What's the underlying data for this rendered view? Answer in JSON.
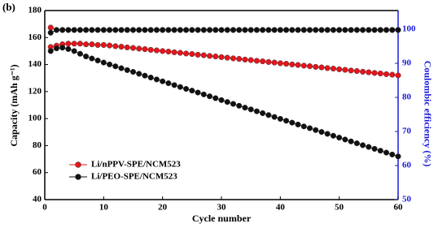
{
  "chart_data": {
    "type": "line",
    "panel_label": "(b)",
    "xlabel": "Cycle number",
    "ylabel": "Capacity (mAh g⁻¹)",
    "y2label": "Coulombic efficiency (%)",
    "x": [
      1,
      2,
      3,
      4,
      5,
      6,
      7,
      8,
      9,
      10,
      11,
      12,
      13,
      14,
      15,
      16,
      17,
      18,
      19,
      20,
      21,
      22,
      23,
      24,
      25,
      26,
      27,
      28,
      29,
      30,
      31,
      32,
      33,
      34,
      35,
      36,
      37,
      38,
      39,
      40,
      41,
      42,
      43,
      44,
      45,
      46,
      47,
      48,
      49,
      50,
      51,
      52,
      53,
      54,
      55,
      56,
      57,
      58,
      59,
      60
    ],
    "series": [
      {
        "name": "Li/nPPV-SPE/NCM523",
        "color": "#e8141b",
        "values": [
          153,
          154,
          155,
          155.5,
          155.5,
          155.5,
          155,
          155,
          154.5,
          154.5,
          154.1,
          153.6,
          153.2,
          152.7,
          152.3,
          151.8,
          151.4,
          150.9,
          150.5,
          150.0,
          149.6,
          149.1,
          148.7,
          148.2,
          147.8,
          147.3,
          146.9,
          146.4,
          146.0,
          145.5,
          145.1,
          144.6,
          144.2,
          143.7,
          143.3,
          142.8,
          142.4,
          141.9,
          141.5,
          141.0,
          140.6,
          140.1,
          139.7,
          139.2,
          138.8,
          138.3,
          137.9,
          137.4,
          137.0,
          136.5,
          136.1,
          135.6,
          135.2,
          134.7,
          134.3,
          133.8,
          133.4,
          132.9,
          132.5,
          132.0
        ],
        "efficiency": [
          100.5,
          99.8,
          99.8,
          99.8,
          99.8,
          99.8,
          99.8,
          99.8,
          99.8,
          99.8,
          99.8,
          99.8,
          99.8,
          99.8,
          99.8,
          99.8,
          99.8,
          99.8,
          99.8,
          99.8,
          99.8,
          99.8,
          99.8,
          99.8,
          99.8,
          99.8,
          99.8,
          99.8,
          99.8,
          99.8,
          99.8,
          99.8,
          99.8,
          99.8,
          99.8,
          99.8,
          99.8,
          99.8,
          99.8,
          99.8,
          99.8,
          99.8,
          99.8,
          99.8,
          99.8,
          99.8,
          99.8,
          99.8,
          99.8,
          99.8,
          99.8,
          99.8,
          99.8,
          99.8,
          99.8,
          99.8,
          99.8,
          99.8,
          99.8,
          99.8
        ]
      },
      {
        "name": "Li/PEO-SPE/NCM523",
        "color": "#111111",
        "values": [
          150,
          152,
          152.5,
          151.5,
          150,
          148,
          146,
          144.5,
          143,
          141.5,
          140.1,
          138.7,
          137.3,
          135.9,
          134.6,
          133.2,
          131.8,
          130.4,
          129.0,
          127.6,
          126.2,
          124.8,
          123.4,
          122.0,
          120.7,
          119.3,
          117.9,
          116.5,
          115.1,
          113.7,
          112.3,
          110.9,
          109.5,
          108.1,
          106.8,
          105.4,
          104.0,
          102.6,
          101.2,
          99.8,
          98.4,
          97.0,
          95.6,
          94.2,
          92.9,
          91.5,
          90.1,
          88.7,
          87.3,
          85.9,
          84.5,
          83.1,
          81.7,
          80.3,
          79.0,
          77.6,
          76.2,
          74.8,
          73.4,
          72.0
        ],
        "efficiency": [
          99.0,
          99.8,
          99.8,
          99.8,
          99.8,
          99.8,
          99.8,
          99.8,
          99.8,
          99.8,
          99.8,
          99.8,
          99.8,
          99.8,
          99.8,
          99.8,
          99.8,
          99.8,
          99.8,
          99.8,
          99.8,
          99.8,
          99.8,
          99.8,
          99.8,
          99.8,
          99.8,
          99.8,
          99.8,
          99.8,
          99.8,
          99.8,
          99.8,
          99.8,
          99.8,
          99.8,
          99.8,
          99.8,
          99.8,
          99.8,
          99.8,
          99.8,
          99.8,
          99.8,
          99.8,
          99.8,
          99.8,
          99.8,
          99.8,
          99.8,
          99.8,
          99.8,
          99.8,
          99.8,
          99.8,
          99.8,
          99.8,
          99.8,
          99.8,
          99.8
        ]
      }
    ],
    "xlim": [
      0,
      60
    ],
    "xticks": [
      0,
      10,
      20,
      30,
      40,
      50,
      60
    ],
    "ylim": [
      40,
      180
    ],
    "yticks": [
      40,
      60,
      80,
      100,
      120,
      140,
      160,
      180
    ],
    "y2lim": [
      50,
      105.5
    ],
    "y2ticks": [
      50,
      60,
      70,
      80,
      90,
      100
    ],
    "y2color": "#1a1adb",
    "legend": "lower-left"
  }
}
